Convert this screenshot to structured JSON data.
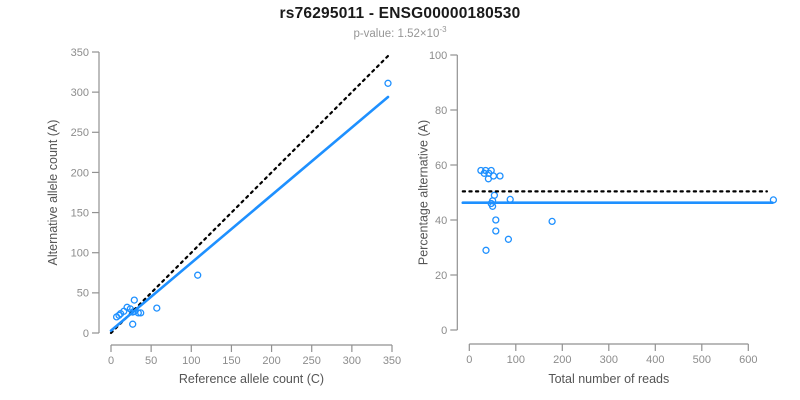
{
  "header": {
    "title": "rs76295011 - ENSG00000180530",
    "subtitle_base": "p-value: 1.52×10",
    "subtitle_exponent": "-3"
  },
  "colors": {
    "point_blue": "#1E90FF",
    "axis_gray": "#919191",
    "tick_label_gray": "#8c8c8c",
    "axis_title_gray": "#555555",
    "title_black": "#1a1a1a",
    "subtitle_gray": "#969696",
    "identity_black": "#000000"
  },
  "chart_data": [
    {
      "name": "allele-count-scatter",
      "type": "scatter",
      "xlabel": "Reference allele count (C)",
      "ylabel": "Alternative allele count (A)",
      "xlim": [
        0,
        350
      ],
      "ylim": [
        0,
        350
      ],
      "xticks": [
        0,
        50,
        100,
        150,
        200,
        250,
        300,
        350
      ],
      "yticks": [
        0,
        50,
        100,
        150,
        200,
        250,
        300,
        350
      ],
      "grid": false,
      "points": [
        [
          7,
          20
        ],
        [
          10,
          22
        ],
        [
          12,
          24
        ],
        [
          16,
          27
        ],
        [
          20,
          32
        ],
        [
          24,
          30
        ],
        [
          27,
          26
        ],
        [
          29,
          27
        ],
        [
          34,
          25
        ],
        [
          37,
          25
        ],
        [
          29,
          41
        ],
        [
          27,
          11
        ],
        [
          57,
          31
        ],
        [
          108,
          72
        ],
        [
          345,
          311
        ]
      ],
      "lines": [
        {
          "name": "identity-line",
          "style": "dotted",
          "color": "#000000",
          "x1": 0,
          "y1": 0,
          "x2": 345,
          "y2": 345
        },
        {
          "name": "fit-line",
          "style": "solid",
          "color": "#1E90FF",
          "x1": 0,
          "y1": 3,
          "x2": 345,
          "y2": 294
        }
      ]
    },
    {
      "name": "percentage-alternative-scatter",
      "type": "scatter",
      "xlabel": "Total number of reads",
      "ylabel": "Percentage alternative (A)",
      "xlim": [
        0,
        654
      ],
      "ylim": [
        0,
        100
      ],
      "xticks": [
        0,
        100,
        200,
        300,
        400,
        500,
        600
      ],
      "yticks": [
        0,
        20,
        40,
        60,
        80,
        100
      ],
      "grid": false,
      "points": [
        [
          25,
          58
        ],
        [
          32,
          57
        ],
        [
          35,
          58
        ],
        [
          41,
          55
        ],
        [
          42,
          57
        ],
        [
          47,
          58
        ],
        [
          52,
          56
        ],
        [
          66,
          56
        ],
        [
          54,
          49
        ],
        [
          50,
          47
        ],
        [
          47,
          46
        ],
        [
          50,
          45
        ],
        [
          88,
          47.5
        ],
        [
          57,
          40
        ],
        [
          57,
          36
        ],
        [
          84,
          33
        ],
        [
          36,
          29
        ],
        [
          178,
          39.5
        ],
        [
          654,
          47.3
        ]
      ],
      "lines": [
        {
          "name": "expected-percentage-line",
          "style": "dotted",
          "color": "#000000",
          "x1": -14,
          "y1": 50.4,
          "x2": 640,
          "y2": 50.4
        },
        {
          "name": "mean-percentage-line",
          "style": "solid",
          "color": "#1E90FF",
          "x1": -14,
          "y1": 46.3,
          "x2": 652,
          "y2": 46.3
        }
      ]
    }
  ]
}
